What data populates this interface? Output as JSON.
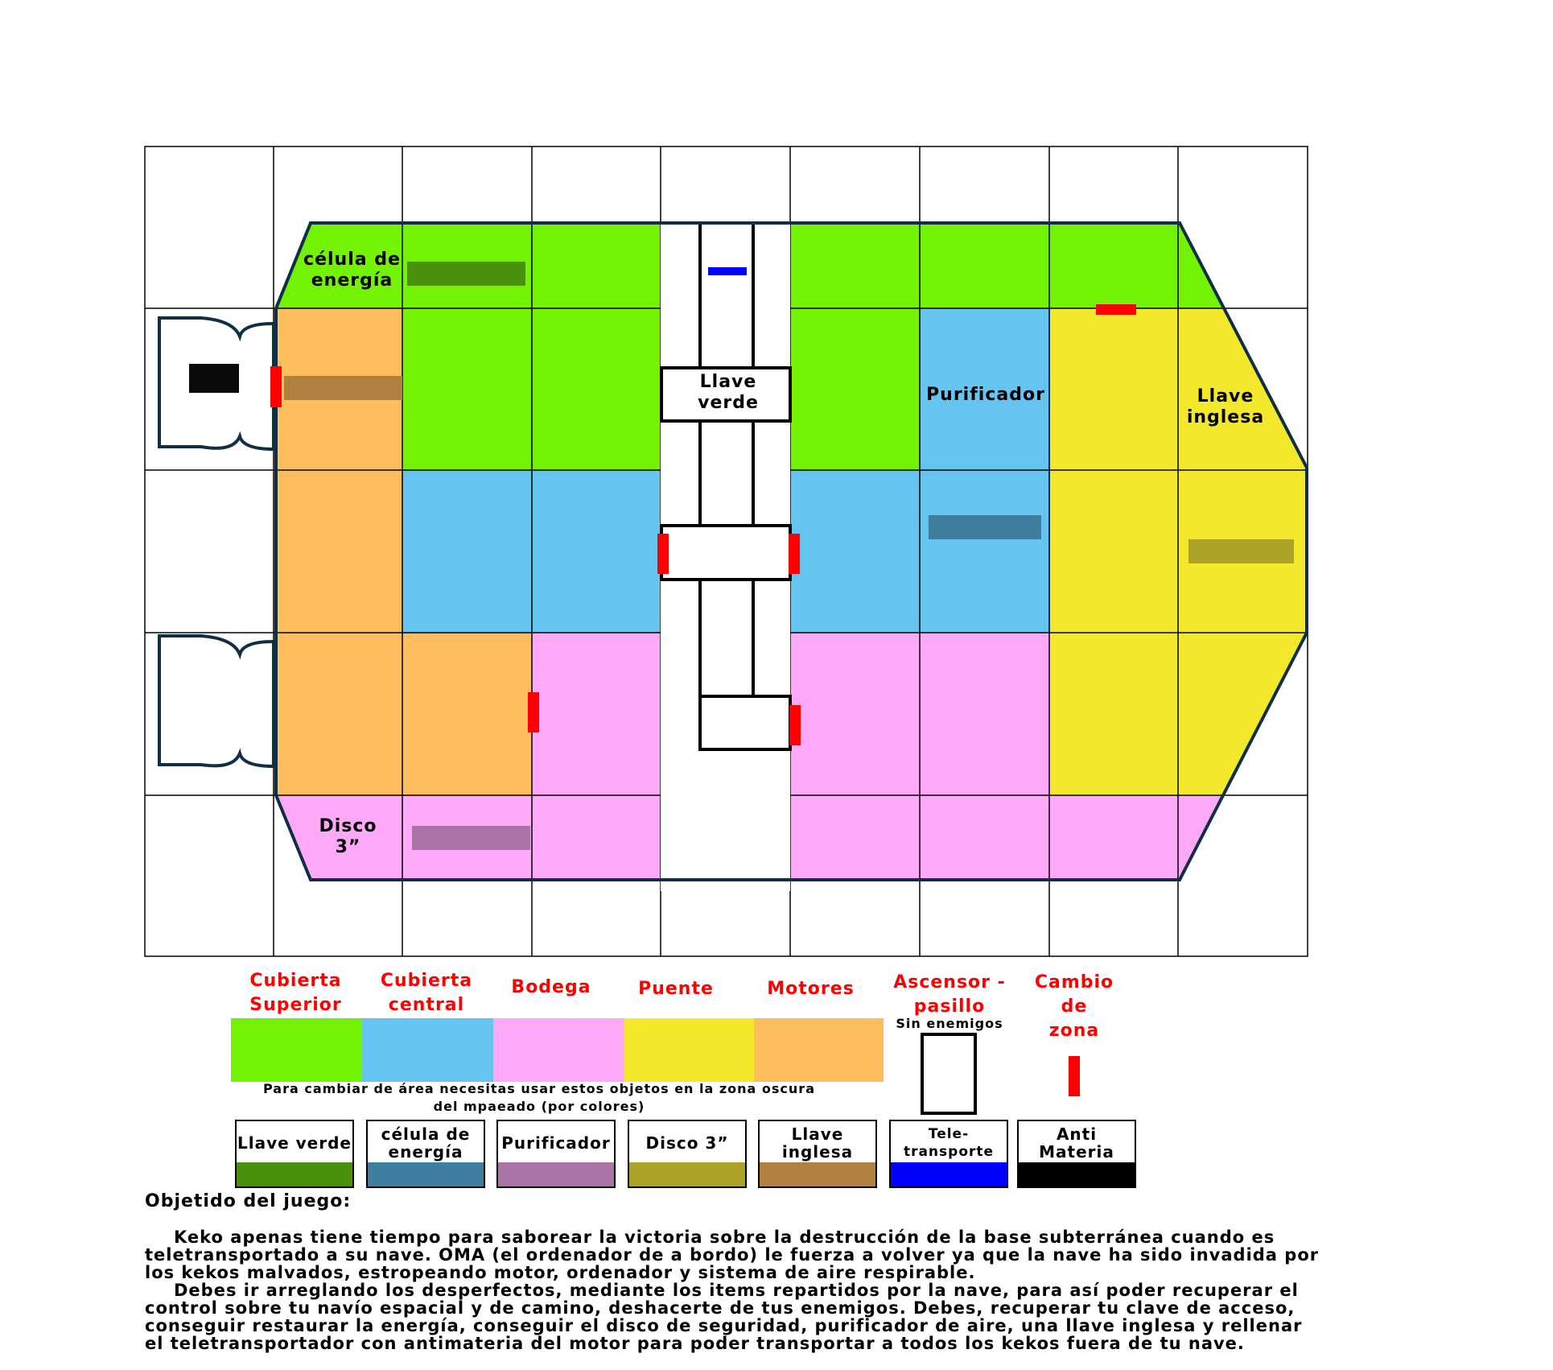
{
  "map": {
    "labels": {
      "energy_cell": "célula de energía",
      "green_key": "Llave verde",
      "purifier": "Purificador",
      "wrench": "Llave inglesa",
      "disk": "Disco 3”"
    }
  },
  "legend": {
    "zones": [
      {
        "name": "Cubierta Superior",
        "color": "#74f204"
      },
      {
        "name": "Cubierta central",
        "color": "#66c4f0"
      },
      {
        "name": "Bodega",
        "color": "#fda9f8"
      },
      {
        "name": "Puente",
        "color": "#f4e82c"
      },
      {
        "name": "Motores",
        "color": "#fdbd5c"
      }
    ],
    "elevator": {
      "title": "Ascensor - pasillo",
      "note": "Sin enemigos"
    },
    "zone_change": {
      "title": "Cambio de zona",
      "color": "#ff0000"
    },
    "objects_note": "Para cambiar de área necesitas usar estos objetos en la zona oscura del mpaeado (por colores)",
    "objects": [
      {
        "name": "Llave verde",
        "color": "#4a910c"
      },
      {
        "name": "célula de energía",
        "color": "#3f7e9e"
      },
      {
        "name": "Purificador",
        "color": "#ac73a6"
      },
      {
        "name": "Disco 3”",
        "color": "#ada329"
      },
      {
        "name": "Llave inglesa",
        "color": "#b08040"
      },
      {
        "name": "Tele-transporte",
        "color": "#0000ff"
      },
      {
        "name": "Anti Materia",
        "color": "#000000"
      }
    ]
  },
  "objective": {
    "title": "Objetido del juego:",
    "paragraphs": [
      "Keko apenas tiene tiempo para saborear la victoria sobre la destrucción de la base subterránea cuando es teletransportado a su nave. OMA (el ordenador de a bordo) le fuerza a volver ya que la nave ha sido invadida por los kekos malvados, estropeando motor, ordenador y sistema de aire respirable.",
      "Debes ir arreglando los desperfectos, mediante los items repartidos por la nave, para así poder recuperar el control sobre tu navío espacial y de camino, deshacerte de tus enemigos. Debes, recuperar tu clave de acceso, conseguir restaurar la energía, conseguir el disco de seguridad, purificador de aire, una llave inglesa y rellenar el teletransportador con antimateria del motor para poder transportar a todos los kekos fuera de tu nave."
    ]
  }
}
